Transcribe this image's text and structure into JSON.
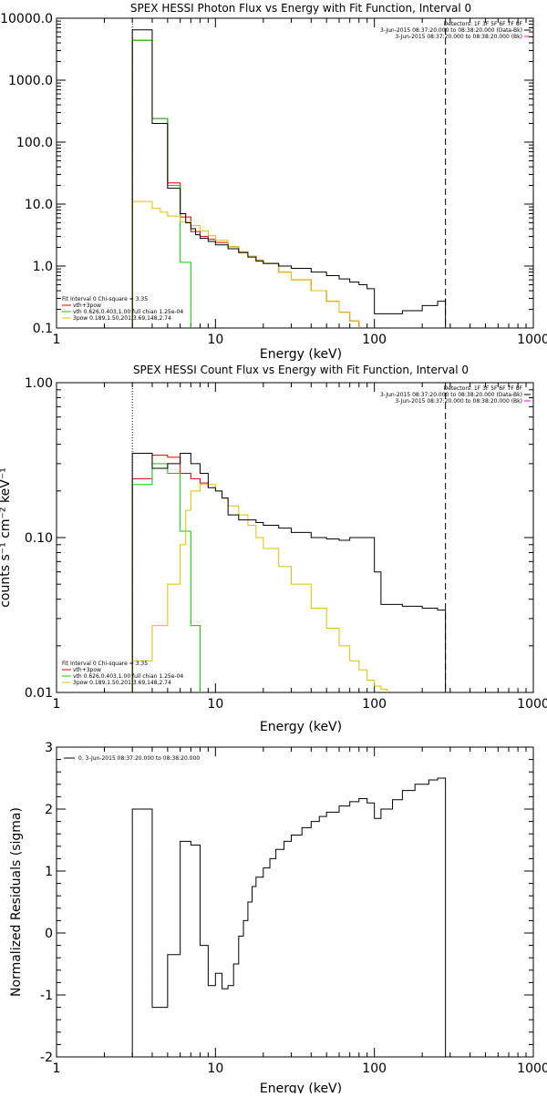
{
  "colors": {
    "background": "#ffffff",
    "axis": "#000000",
    "data": "#000000",
    "model_total": "#e00000",
    "thermal": "#00d000",
    "power_law": "#e0c000",
    "background_line": "#ff00ff"
  },
  "chart_data": [
    {
      "type": "line",
      "title": "SPEX HESSI Photon Flux vs Energy with Fit Function, Interval 0",
      "xlabel": "Energy (keV)",
      "ylabel": "",
      "xscale": "log",
      "yscale": "log",
      "xlim": [
        1,
        1000
      ],
      "ylim": [
        0.1,
        10000
      ],
      "x_tick_labels": [
        "1",
        "10",
        "100",
        "1000"
      ],
      "y_tick_labels": [
        "0.1",
        "1.0",
        "10.0",
        "100.0",
        "1000.0",
        "10000.0"
      ],
      "y_tick_values": [
        0.1,
        1,
        10,
        100,
        1000,
        10000
      ],
      "vertical_lines": [
        {
          "x": 3,
          "style": "dotted"
        },
        {
          "x": 280,
          "style": "dashed"
        }
      ],
      "legend_top_right": [
        "Detectors: 1F 3F 5F 6F 7F 8F",
        "3-Jun-2015 08:37:20.000 to 08:38:20.000 (Data-Bk)",
        "3-Jun-2015 08:37:20.000 to 08:38:20.000 (Bk)"
      ],
      "legend_bottom_left": [
        "Fit Interval 0   Chi-square = 3.35",
        "vth+3pow",
        "vth 0.626,0.403,1.00  full chian 1.25e-04",
        "3pow 0.189,1.50,201,3.69,148,2.74"
      ],
      "series": [
        {
          "name": "vth+3pow",
          "role": "total",
          "points": [
            [
              3,
              4400
            ],
            [
              3.5,
              4400
            ],
            [
              4,
              240
            ],
            [
              4.5,
              240
            ],
            [
              5,
              22
            ],
            [
              5.5,
              22
            ],
            [
              6,
              6.2
            ],
            [
              6.5,
              6.2
            ],
            [
              7,
              3.6
            ],
            [
              7.5,
              3.6
            ],
            [
              8,
              3.0
            ],
            [
              9,
              2.7
            ],
            [
              10,
              2.4
            ],
            [
              12,
              2.05
            ],
            [
              14,
              1.7
            ],
            [
              16,
              1.45
            ],
            [
              18,
              1.25
            ],
            [
              20,
              1.1
            ],
            [
              25,
              0.8
            ],
            [
              30,
              0.6
            ],
            [
              40,
              0.4
            ],
            [
              50,
              0.27
            ],
            [
              60,
              0.18
            ],
            [
              70,
              0.13
            ],
            [
              80,
              0.1
            ]
          ]
        },
        {
          "name": "vth",
          "role": "thermal",
          "points": [
            [
              3,
              4400
            ],
            [
              3.5,
              4400
            ],
            [
              4,
              240
            ],
            [
              4.5,
              240
            ],
            [
              5,
              20
            ],
            [
              5.5,
              20
            ],
            [
              6,
              1.15
            ],
            [
              6.5,
              1.15
            ],
            [
              7,
              0.1
            ]
          ]
        },
        {
          "name": "3pow",
          "role": "power_law",
          "points": [
            [
              3,
              11
            ],
            [
              3.5,
              11
            ],
            [
              4,
              8.5
            ],
            [
              4.5,
              7.4
            ],
            [
              5,
              6.4
            ],
            [
              6,
              5.2
            ],
            [
              7,
              4.5
            ],
            [
              8,
              3.7
            ],
            [
              9,
              3.1
            ],
            [
              10,
              2.6
            ],
            [
              12,
              2.05
            ],
            [
              14,
              1.7
            ],
            [
              16,
              1.45
            ],
            [
              18,
              1.25
            ],
            [
              20,
              1.1
            ],
            [
              25,
              0.8
            ],
            [
              30,
              0.6
            ],
            [
              40,
              0.4
            ],
            [
              50,
              0.27
            ],
            [
              60,
              0.18
            ],
            [
              70,
              0.13
            ],
            [
              80,
              0.1
            ]
          ]
        },
        {
          "name": "Data-Bk",
          "role": "data",
          "points": [
            [
              3,
              6500
            ],
            [
              3.5,
              6500
            ],
            [
              4,
              200
            ],
            [
              4.5,
              200
            ],
            [
              5,
              18
            ],
            [
              5.5,
              18
            ],
            [
              6,
              7
            ],
            [
              6.5,
              5
            ],
            [
              7,
              4
            ],
            [
              7.5,
              3.2
            ],
            [
              8,
              2.8
            ],
            [
              9,
              2.5
            ],
            [
              10,
              2.2
            ],
            [
              12,
              1.9
            ],
            [
              14,
              1.65
            ],
            [
              16,
              1.4
            ],
            [
              18,
              1.2
            ],
            [
              20,
              1.1
            ],
            [
              25,
              1.0
            ],
            [
              30,
              0.92
            ],
            [
              40,
              0.8
            ],
            [
              50,
              0.7
            ],
            [
              60,
              0.62
            ],
            [
              70,
              0.55
            ],
            [
              80,
              0.5
            ],
            [
              90,
              0.43
            ],
            [
              100,
              0.17
            ],
            [
              120,
              0.17
            ],
            [
              150,
              0.19
            ],
            [
              200,
              0.23
            ],
            [
              250,
              0.27
            ],
            [
              280,
              0.3
            ]
          ]
        }
      ]
    },
    {
      "type": "line",
      "title": "SPEX HESSI Count Flux vs Energy with Fit Function, Interval 0",
      "xlabel": "Energy (keV)",
      "ylabel": "counts s⁻¹ cm⁻² keV⁻¹",
      "xscale": "log",
      "yscale": "log",
      "xlim": [
        1,
        1000
      ],
      "ylim": [
        0.01,
        1.0
      ],
      "x_tick_labels": [
        "1",
        "10",
        "100",
        "1000"
      ],
      "y_tick_labels": [
        "0.01",
        "0.10",
        "1.00"
      ],
      "y_tick_values": [
        0.01,
        0.1,
        1.0
      ],
      "vertical_lines": [
        {
          "x": 3,
          "style": "dotted"
        },
        {
          "x": 280,
          "style": "dashed"
        }
      ],
      "legend_top_right": [
        "Detectors: 1F 3F 5F 6F 7F 8F",
        "3-Jun-2015 08:37:20.000 to 08:38:20.000 (Data-Bk)",
        "3-Jun-2015 08:37:20.000 to 08:38:20.000 (Bk)"
      ],
      "legend_bottom_left": [
        "Fit Interval 0   Chi-square = 3.35",
        "vth+3pow",
        "vth 0.626,0.403,1.00  full chian 1.25e-04",
        "3pow 0.189,1.50,201,3.69,148,2.74"
      ],
      "series": [
        {
          "name": "vth+3pow",
          "role": "total",
          "points": [
            [
              3,
              0.24
            ],
            [
              4,
              0.34
            ],
            [
              5,
              0.33
            ],
            [
              6,
              0.26
            ],
            [
              7,
              0.24
            ],
            [
              8,
              0.225
            ],
            [
              9,
              0.21
            ]
          ]
        },
        {
          "name": "vth",
          "role": "thermal",
          "points": [
            [
              3,
              0.22
            ],
            [
              4,
              0.3
            ],
            [
              5,
              0.26
            ],
            [
              6,
              0.11
            ],
            [
              7,
              0.027
            ],
            [
              8,
              0.005
            ]
          ]
        },
        {
          "name": "3pow",
          "role": "power_law",
          "points": [
            [
              3,
              0.016
            ],
            [
              4,
              0.027
            ],
            [
              5,
              0.05
            ],
            [
              6,
              0.09
            ],
            [
              6.5,
              0.15
            ],
            [
              7,
              0.2
            ],
            [
              8,
              0.22
            ],
            [
              9,
              0.22
            ],
            [
              10,
              0.2
            ],
            [
              11,
              0.18
            ],
            [
              12,
              0.16
            ],
            [
              14,
              0.14
            ],
            [
              16,
              0.12
            ],
            [
              18,
              0.1
            ],
            [
              20,
              0.085
            ],
            [
              25,
              0.065
            ],
            [
              30,
              0.05
            ],
            [
              40,
              0.035
            ],
            [
              50,
              0.026
            ],
            [
              60,
              0.02
            ],
            [
              70,
              0.016
            ],
            [
              80,
              0.014
            ],
            [
              90,
              0.012
            ],
            [
              100,
              0.011
            ],
            [
              110,
              0.0105
            ],
            [
              120,
              0.01
            ]
          ]
        },
        {
          "name": "Data-Bk",
          "role": "data",
          "points": [
            [
              3,
              0.35
            ],
            [
              4,
              0.28
            ],
            [
              5,
              0.3
            ],
            [
              6,
              0.35
            ],
            [
              7,
              0.3
            ],
            [
              8,
              0.26
            ],
            [
              9,
              0.21
            ],
            [
              10,
              0.2
            ],
            [
              11,
              0.18
            ],
            [
              12,
              0.14
            ],
            [
              14,
              0.13
            ],
            [
              16,
              0.13
            ],
            [
              18,
              0.125
            ],
            [
              20,
              0.12
            ],
            [
              25,
              0.115
            ],
            [
              30,
              0.108
            ],
            [
              40,
              0.1
            ],
            [
              50,
              0.098
            ],
            [
              60,
              0.096
            ],
            [
              70,
              0.1
            ],
            [
              80,
              0.1
            ],
            [
              90,
              0.1
            ],
            [
              100,
              0.06
            ],
            [
              110,
              0.037
            ],
            [
              150,
              0.036
            ],
            [
              200,
              0.035
            ],
            [
              250,
              0.034
            ],
            [
              280,
              0.033
            ]
          ]
        }
      ]
    },
    {
      "type": "line",
      "title": "",
      "xlabel": "Energy (keV)",
      "ylabel": "Normalized Residuals (sigma)",
      "xscale": "log",
      "yscale": "linear",
      "xlim": [
        1,
        1000
      ],
      "ylim": [
        -2,
        3
      ],
      "x_tick_labels": [
        "1",
        "10",
        "100",
        "1000"
      ],
      "y_tick_labels": [
        "-2",
        "-1",
        "0",
        "1",
        "2",
        "3"
      ],
      "y_tick_values": [
        -2,
        -1,
        0,
        1,
        2,
        3
      ],
      "legend_top_left": [
        "0.  3-Jun-2015 08:37:20.000 to 08:38:20.000"
      ],
      "series": [
        {
          "name": "0.  3-Jun-2015 08:37:20.000 to 08:38:20.000",
          "role": "residual",
          "points": [
            [
              3,
              2.0
            ],
            [
              4,
              -1.2
            ],
            [
              5,
              -0.35
            ],
            [
              6,
              1.48
            ],
            [
              7,
              1.42
            ],
            [
              8,
              -0.2
            ],
            [
              9,
              -0.85
            ],
            [
              10,
              -0.65
            ],
            [
              11,
              -0.9
            ],
            [
              12,
              -0.85
            ],
            [
              13,
              -0.5
            ],
            [
              14,
              -0.05
            ],
            [
              15,
              0.2
            ],
            [
              16,
              0.5
            ],
            [
              17,
              0.75
            ],
            [
              18,
              0.9
            ],
            [
              20,
              1.05
            ],
            [
              22,
              1.2
            ],
            [
              24,
              1.35
            ],
            [
              27,
              1.48
            ],
            [
              30,
              1.58
            ],
            [
              35,
              1.7
            ],
            [
              40,
              1.8
            ],
            [
              45,
              1.88
            ],
            [
              50,
              1.95
            ],
            [
              60,
              2.05
            ],
            [
              70,
              2.12
            ],
            [
              80,
              2.17
            ],
            [
              90,
              2.1
            ],
            [
              100,
              1.85
            ],
            [
              110,
              2.0
            ],
            [
              130,
              2.15
            ],
            [
              150,
              2.3
            ],
            [
              180,
              2.4
            ],
            [
              220,
              2.47
            ],
            [
              250,
              2.5
            ],
            [
              280,
              2.5
            ]
          ]
        }
      ]
    }
  ]
}
